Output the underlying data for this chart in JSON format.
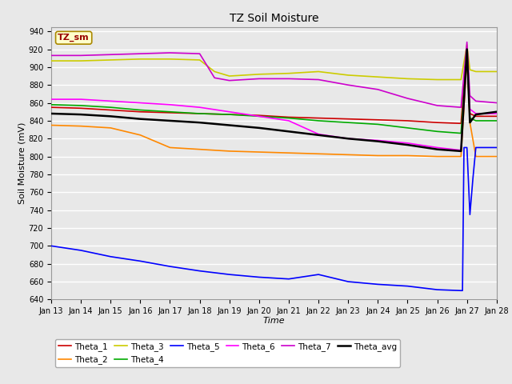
{
  "title": "TZ Soil Moisture",
  "xlabel": "Time",
  "ylabel": "Soil Moisture (mV)",
  "ylim": [
    640,
    945
  ],
  "xlim": [
    0,
    15
  ],
  "xtick_labels": [
    "Jan 13",
    "Jan 14",
    "Jan 15",
    "Jan 16",
    "Jan 17",
    "Jan 18",
    "Jan 19",
    "Jan 20",
    "Jan 21",
    "Jan 22",
    "Jan 23",
    "Jan 24",
    "Jan 25",
    "Jan 26",
    "Jan 27",
    "Jan 28"
  ],
  "xtick_positions": [
    0,
    1,
    2,
    3,
    4,
    5,
    6,
    7,
    8,
    9,
    10,
    11,
    12,
    13,
    14,
    15
  ],
  "ytick_positions": [
    640,
    660,
    680,
    700,
    720,
    740,
    760,
    780,
    800,
    820,
    840,
    860,
    880,
    900,
    920,
    940
  ],
  "background_color": "#e0e0e0",
  "plot_bg_color": "#e8e8e8",
  "grid_color": "#ffffff",
  "label_box_text": "TZ_sm",
  "label_box_bg": "#ffffcc",
  "label_box_fg": "#990000",
  "series": {
    "Theta_1": {
      "color": "#cc0000",
      "points": [
        [
          0,
          855
        ],
        [
          1,
          854
        ],
        [
          2,
          852
        ],
        [
          3,
          850
        ],
        [
          4,
          849
        ],
        [
          5,
          848
        ],
        [
          6,
          847
        ],
        [
          7,
          846
        ],
        [
          8,
          844
        ],
        [
          9,
          843
        ],
        [
          10,
          842
        ],
        [
          11,
          841
        ],
        [
          12,
          840
        ],
        [
          13,
          838
        ],
        [
          13.8,
          837
        ],
        [
          14.0,
          920
        ],
        [
          14.1,
          848
        ],
        [
          14.3,
          845
        ],
        [
          15,
          845
        ]
      ]
    },
    "Theta_2": {
      "color": "#ff8800",
      "points": [
        [
          0,
          835
        ],
        [
          1,
          834
        ],
        [
          2,
          832
        ],
        [
          3,
          824
        ],
        [
          4,
          810
        ],
        [
          5,
          808
        ],
        [
          6,
          806
        ],
        [
          7,
          805
        ],
        [
          8,
          804
        ],
        [
          9,
          803
        ],
        [
          10,
          802
        ],
        [
          11,
          801
        ],
        [
          12,
          801
        ],
        [
          13,
          800
        ],
        [
          13.8,
          800
        ],
        [
          14.0,
          910
        ],
        [
          14.1,
          838
        ],
        [
          14.3,
          800
        ],
        [
          15,
          800
        ]
      ]
    },
    "Theta_3": {
      "color": "#cccc00",
      "points": [
        [
          0,
          907
        ],
        [
          1,
          907
        ],
        [
          2,
          908
        ],
        [
          3,
          909
        ],
        [
          4,
          909
        ],
        [
          5,
          908
        ],
        [
          5.5,
          895
        ],
        [
          6,
          890
        ],
        [
          7,
          892
        ],
        [
          8,
          893
        ],
        [
          9,
          895
        ],
        [
          10,
          891
        ],
        [
          11,
          889
        ],
        [
          12,
          887
        ],
        [
          13,
          886
        ],
        [
          13.8,
          886
        ],
        [
          14.0,
          925
        ],
        [
          14.1,
          897
        ],
        [
          14.3,
          895
        ],
        [
          15,
          895
        ]
      ]
    },
    "Theta_4": {
      "color": "#00aa00",
      "points": [
        [
          0,
          858
        ],
        [
          1,
          857
        ],
        [
          2,
          855
        ],
        [
          3,
          852
        ],
        [
          4,
          850
        ],
        [
          5,
          848
        ],
        [
          6,
          847
        ],
        [
          7,
          845
        ],
        [
          8,
          843
        ],
        [
          9,
          840
        ],
        [
          10,
          838
        ],
        [
          11,
          836
        ],
        [
          12,
          832
        ],
        [
          13,
          828
        ],
        [
          13.8,
          826
        ],
        [
          14.0,
          915
        ],
        [
          14.1,
          843
        ],
        [
          14.3,
          840
        ],
        [
          15,
          840
        ]
      ]
    },
    "Theta_5": {
      "color": "#0000ff",
      "points": [
        [
          0,
          700
        ],
        [
          1,
          695
        ],
        [
          2,
          688
        ],
        [
          3,
          683
        ],
        [
          4,
          677
        ],
        [
          5,
          672
        ],
        [
          6,
          668
        ],
        [
          7,
          665
        ],
        [
          8,
          663
        ],
        [
          9,
          668
        ],
        [
          10,
          660
        ],
        [
          11,
          657
        ],
        [
          12,
          655
        ],
        [
          13,
          651
        ],
        [
          13.8,
          650
        ],
        [
          13.85,
          650
        ],
        [
          13.9,
          810
        ],
        [
          14.0,
          810
        ],
        [
          14.1,
          735
        ],
        [
          14.2,
          775
        ],
        [
          14.3,
          810
        ],
        [
          15,
          810
        ]
      ]
    },
    "Theta_6": {
      "color": "#ff00ff",
      "points": [
        [
          0,
          864
        ],
        [
          1,
          864
        ],
        [
          2,
          862
        ],
        [
          3,
          860
        ],
        [
          4,
          858
        ],
        [
          5,
          855
        ],
        [
          6,
          850
        ],
        [
          7,
          845
        ],
        [
          8,
          840
        ],
        [
          9,
          825
        ],
        [
          10,
          820
        ],
        [
          11,
          818
        ],
        [
          12,
          815
        ],
        [
          13,
          810
        ],
        [
          13.8,
          807
        ],
        [
          14.0,
          915
        ],
        [
          14.1,
          853
        ],
        [
          14.3,
          848
        ],
        [
          15,
          848
        ]
      ]
    },
    "Theta_7": {
      "color": "#cc00cc",
      "points": [
        [
          0,
          913
        ],
        [
          1,
          913
        ],
        [
          2,
          914
        ],
        [
          3,
          915
        ],
        [
          4,
          916
        ],
        [
          5,
          915
        ],
        [
          5.5,
          888
        ],
        [
          6,
          885
        ],
        [
          7,
          887
        ],
        [
          8,
          887
        ],
        [
          9,
          886
        ],
        [
          10,
          880
        ],
        [
          11,
          875
        ],
        [
          12,
          865
        ],
        [
          13,
          857
        ],
        [
          13.8,
          855
        ],
        [
          14.0,
          928
        ],
        [
          14.1,
          868
        ],
        [
          14.3,
          862
        ],
        [
          15,
          860
        ]
      ]
    },
    "Theta_avg": {
      "color": "#000000",
      "points": [
        [
          0,
          848
        ],
        [
          1,
          847
        ],
        [
          2,
          845
        ],
        [
          3,
          842
        ],
        [
          4,
          840
        ],
        [
          5,
          838
        ],
        [
          6,
          835
        ],
        [
          7,
          832
        ],
        [
          8,
          828
        ],
        [
          9,
          824
        ],
        [
          10,
          820
        ],
        [
          11,
          817
        ],
        [
          12,
          813
        ],
        [
          13,
          808
        ],
        [
          13.8,
          806
        ],
        [
          14.0,
          920
        ],
        [
          14.1,
          838
        ],
        [
          14.3,
          847
        ],
        [
          15,
          850
        ]
      ]
    }
  },
  "legend_order": [
    "Theta_1",
    "Theta_2",
    "Theta_3",
    "Theta_4",
    "Theta_5",
    "Theta_6",
    "Theta_7",
    "Theta_avg"
  ]
}
